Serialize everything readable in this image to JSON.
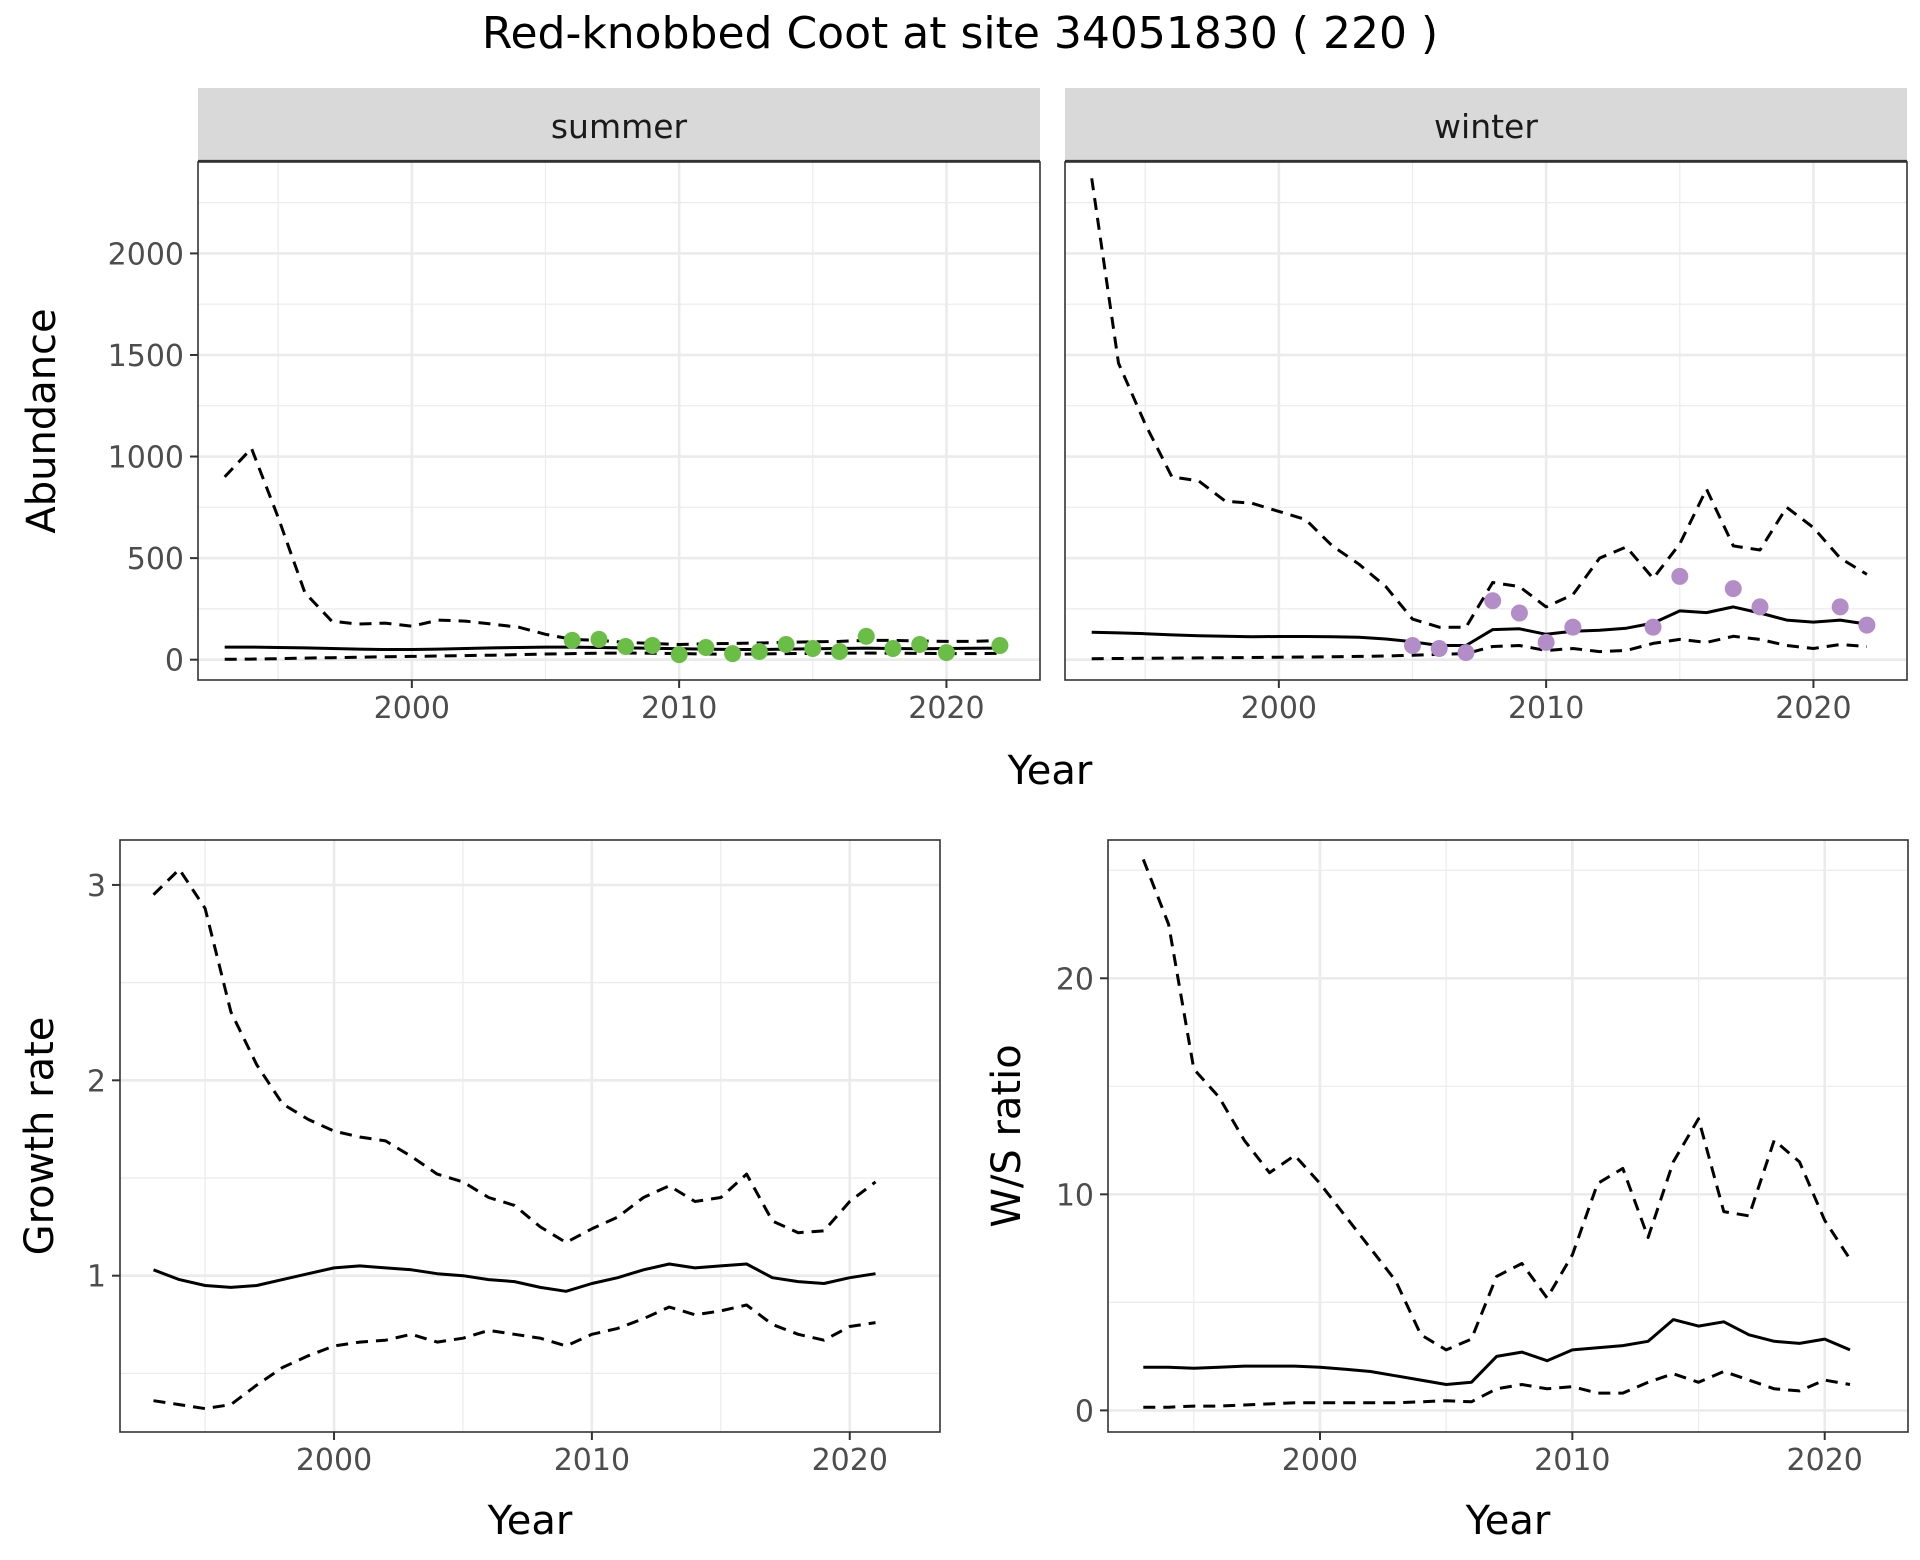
{
  "title": "Red-knobbed Coot at site 34051830 ( 220 )",
  "colors": {
    "summer_points": "#6ABE45",
    "winter_points": "#B28DC8",
    "lines": "#000000",
    "strip_bg": "#D9D9D9",
    "grid": "#EBEBEB"
  },
  "chart_data": [
    {
      "type": "line",
      "panel": "summer",
      "strip": "summer",
      "xlabel": "Year",
      "ylabel": "Abundance",
      "xlim": [
        1992,
        2023.5
      ],
      "ylim": [
        -100,
        2450
      ],
      "x_ticks": [
        2000,
        2010,
        2020
      ],
      "x_tick_labels": [
        "2000",
        "2010",
        "2020"
      ],
      "y_ticks": [
        0,
        500,
        1000,
        1500,
        2000
      ],
      "y_tick_labels": [
        "0",
        "500",
        "1000",
        "1500",
        "2000"
      ],
      "grid": true,
      "series": [
        {
          "style": "solid",
          "x": [
            1993,
            1994,
            1995,
            1996,
            1997,
            1998,
            1999,
            2000,
            2001,
            2002,
            2003,
            2004,
            2005,
            2006,
            2007,
            2008,
            2009,
            2010,
            2011,
            2012,
            2013,
            2014,
            2015,
            2016,
            2017,
            2018,
            2019,
            2020,
            2021,
            2022
          ],
          "y": [
            62,
            62,
            60,
            58,
            55,
            52,
            50,
            50,
            52,
            55,
            58,
            60,
            62,
            62,
            60,
            58,
            56,
            54,
            52,
            50,
            50,
            52,
            54,
            55,
            57,
            55,
            54,
            55,
            56,
            57
          ]
        },
        {
          "style": "dashed",
          "x": [
            1993,
            1994,
            1995,
            1996,
            1997,
            1998,
            1999,
            2000,
            2001,
            2002,
            2003,
            2004,
            2005,
            2006,
            2007,
            2008,
            2009,
            2010,
            2011,
            2012,
            2013,
            2014,
            2015,
            2016,
            2017,
            2018,
            2019,
            2020,
            2021,
            2022
          ],
          "y": [
            900,
            1040,
            700,
            330,
            190,
            175,
            180,
            165,
            195,
            190,
            175,
            160,
            125,
            100,
            95,
            85,
            80,
            75,
            78,
            80,
            82,
            85,
            88,
            90,
            95,
            95,
            92,
            90,
            90,
            95
          ]
        },
        {
          "style": "dashed",
          "x": [
            1993,
            1994,
            1995,
            1996,
            1997,
            1998,
            1999,
            2000,
            2001,
            2002,
            2003,
            2004,
            2005,
            2006,
            2007,
            2008,
            2009,
            2010,
            2011,
            2012,
            2013,
            2014,
            2015,
            2016,
            2017,
            2018,
            2019,
            2020,
            2021,
            2022
          ],
          "y": [
            2,
            3,
            5,
            8,
            10,
            12,
            14,
            16,
            18,
            20,
            22,
            25,
            28,
            30,
            32,
            33,
            32,
            30,
            28,
            27,
            28,
            30,
            31,
            32,
            33,
            32,
            31,
            30,
            30,
            31
          ]
        },
        {
          "style": "points",
          "x": [
            2006,
            2007,
            2008,
            2009,
            2010,
            2011,
            2012,
            2013,
            2014,
            2015,
            2016,
            2017,
            2018,
            2019,
            2020,
            2022
          ],
          "y": [
            95,
            100,
            65,
            70,
            25,
            60,
            30,
            40,
            75,
            55,
            40,
            115,
            55,
            75,
            35,
            70
          ]
        }
      ]
    },
    {
      "type": "line",
      "panel": "winter",
      "strip": "winter",
      "xlabel": "Year",
      "ylabel": "",
      "xlim": [
        1992,
        2023.5
      ],
      "ylim": [
        -100,
        2450
      ],
      "x_ticks": [
        2000,
        2010,
        2020
      ],
      "x_tick_labels": [
        "2000",
        "2010",
        "2020"
      ],
      "grid": true,
      "series": [
        {
          "style": "solid",
          "x": [
            1993,
            1994,
            1995,
            1996,
            1997,
            1998,
            1999,
            2000,
            2001,
            2002,
            2003,
            2004,
            2005,
            2006,
            2007,
            2008,
            2009,
            2010,
            2011,
            2012,
            2013,
            2014,
            2015,
            2016,
            2017,
            2018,
            2019,
            2020,
            2021,
            2022
          ],
          "y": [
            135,
            132,
            128,
            122,
            118,
            115,
            113,
            114,
            114,
            113,
            110,
            102,
            88,
            70,
            70,
            148,
            152,
            125,
            140,
            145,
            155,
            180,
            240,
            232,
            260,
            230,
            195,
            185,
            195,
            175
          ]
        },
        {
          "style": "dashed",
          "x": [
            1993,
            1994,
            1995,
            1996,
            1997,
            1998,
            1999,
            2000,
            2001,
            2002,
            2003,
            2004,
            2005,
            2006,
            2007,
            2008,
            2009,
            2010,
            2011,
            2012,
            2013,
            2014,
            2015,
            2016,
            2017,
            2018,
            2019,
            2020,
            2021,
            2022
          ],
          "y": [
            2370,
            1460,
            1160,
            900,
            880,
            780,
            770,
            730,
            690,
            560,
            470,
            360,
            200,
            160,
            160,
            380,
            360,
            260,
            320,
            500,
            555,
            400,
            570,
            840,
            560,
            540,
            750,
            650,
            500,
            420
          ]
        },
        {
          "style": "dashed",
          "x": [
            1993,
            1994,
            1995,
            1996,
            1997,
            1998,
            1999,
            2000,
            2001,
            2002,
            2003,
            2004,
            2005,
            2006,
            2007,
            2008,
            2009,
            2010,
            2011,
            2012,
            2013,
            2014,
            2015,
            2016,
            2017,
            2018,
            2019,
            2020,
            2021,
            2022
          ],
          "y": [
            5,
            6,
            7,
            8,
            9,
            10,
            11,
            12,
            13,
            14,
            16,
            18,
            22,
            26,
            30,
            65,
            70,
            45,
            55,
            40,
            45,
            80,
            100,
            85,
            115,
            100,
            70,
            55,
            75,
            65
          ]
        },
        {
          "style": "points",
          "x": [
            2005,
            2006,
            2007,
            2008,
            2009,
            2010,
            2011,
            2014,
            2015,
            2017,
            2018,
            2021,
            2022
          ],
          "y": [
            70,
            55,
            35,
            290,
            230,
            85,
            160,
            160,
            410,
            350,
            260,
            260,
            170
          ]
        }
      ]
    },
    {
      "type": "line",
      "panel": "growth",
      "xlabel": "Year",
      "ylabel": "Growth rate",
      "xlim": [
        1991.7,
        2023.5
      ],
      "ylim": [
        0.2,
        3.23
      ],
      "x_ticks": [
        2000,
        2010,
        2020
      ],
      "x_tick_labels": [
        "2000",
        "2010",
        "2020"
      ],
      "y_ticks": [
        1,
        2,
        3
      ],
      "y_tick_labels": [
        "1",
        "2",
        "3"
      ],
      "grid": true,
      "series": [
        {
          "style": "solid",
          "x": [
            1993,
            1994,
            1995,
            1996,
            1997,
            1998,
            1999,
            2000,
            2001,
            2002,
            2003,
            2004,
            2005,
            2006,
            2007,
            2008,
            2009,
            2010,
            2011,
            2012,
            2013,
            2014,
            2015,
            2016,
            2017,
            2018,
            2019,
            2020,
            2021
          ],
          "y": [
            1.03,
            0.98,
            0.95,
            0.94,
            0.95,
            0.98,
            1.01,
            1.04,
            1.05,
            1.04,
            1.03,
            1.01,
            1.0,
            0.98,
            0.97,
            0.94,
            0.92,
            0.96,
            0.99,
            1.03,
            1.06,
            1.04,
            1.05,
            1.06,
            0.99,
            0.97,
            0.96,
            0.99,
            1.01
          ]
        },
        {
          "style": "dashed",
          "x": [
            1993,
            1994,
            1995,
            1996,
            1997,
            1998,
            1999,
            2000,
            2001,
            2002,
            2003,
            2004,
            2005,
            2006,
            2007,
            2008,
            2009,
            2010,
            2011,
            2012,
            2013,
            2014,
            2015,
            2016,
            2017,
            2018,
            2019,
            2020,
            2021
          ],
          "y": [
            2.95,
            3.08,
            2.88,
            2.35,
            2.08,
            1.88,
            1.8,
            1.74,
            1.71,
            1.69,
            1.61,
            1.52,
            1.48,
            1.4,
            1.36,
            1.25,
            1.17,
            1.24,
            1.3,
            1.4,
            1.46,
            1.38,
            1.4,
            1.52,
            1.28,
            1.22,
            1.23,
            1.38,
            1.48
          ]
        },
        {
          "style": "dashed",
          "x": [
            1993,
            1994,
            1995,
            1996,
            1997,
            1998,
            1999,
            2000,
            2001,
            2002,
            2003,
            2004,
            2005,
            2006,
            2007,
            2008,
            2009,
            2010,
            2011,
            2012,
            2013,
            2014,
            2015,
            2016,
            2017,
            2018,
            2019,
            2020,
            2021
          ],
          "y": [
            0.36,
            0.34,
            0.32,
            0.34,
            0.44,
            0.53,
            0.59,
            0.64,
            0.66,
            0.67,
            0.7,
            0.66,
            0.68,
            0.72,
            0.7,
            0.68,
            0.64,
            0.7,
            0.73,
            0.78,
            0.84,
            0.8,
            0.82,
            0.85,
            0.75,
            0.7,
            0.67,
            0.74,
            0.76
          ]
        }
      ]
    },
    {
      "type": "line",
      "panel": "ratio",
      "xlabel": "Year",
      "ylabel": "W/S ratio",
      "xlim": [
        1991.6,
        2023.3
      ],
      "ylim": [
        -1,
        26.4
      ],
      "x_ticks": [
        2000,
        2010,
        2020
      ],
      "x_tick_labels": [
        "2000",
        "2010",
        "2020"
      ],
      "y_ticks": [
        0,
        10,
        20
      ],
      "y_tick_labels": [
        "0",
        "10",
        "20"
      ],
      "grid": true,
      "series": [
        {
          "style": "solid",
          "x": [
            1993,
            1994,
            1995,
            1996,
            1997,
            1998,
            1999,
            2000,
            2001,
            2002,
            2003,
            2004,
            2005,
            2006,
            2007,
            2008,
            2009,
            2010,
            2011,
            2012,
            2013,
            2014,
            2015,
            2016,
            2017,
            2018,
            2019,
            2020,
            2021
          ],
          "y": [
            2.0,
            2.0,
            1.95,
            2.0,
            2.05,
            2.05,
            2.05,
            2.0,
            1.9,
            1.8,
            1.6,
            1.4,
            1.2,
            1.3,
            2.5,
            2.7,
            2.3,
            2.8,
            2.9,
            3.0,
            3.2,
            4.2,
            3.9,
            4.1,
            3.5,
            3.2,
            3.1,
            3.3,
            2.8
          ]
        },
        {
          "style": "dashed",
          "x": [
            1993,
            1994,
            1995,
            1996,
            1997,
            1998,
            1999,
            2000,
            2001,
            2002,
            2003,
            2004,
            2005,
            2006,
            2007,
            2008,
            2009,
            2010,
            2011,
            2012,
            2013,
            2014,
            2015,
            2016,
            2017,
            2018,
            2019,
            2020,
            2021
          ],
          "y": [
            25.5,
            22.5,
            15.8,
            14.5,
            12.5,
            11.0,
            11.8,
            10.5,
            9.0,
            7.5,
            6.0,
            3.5,
            2.8,
            3.3,
            6.2,
            6.8,
            5.2,
            7.2,
            10.5,
            11.2,
            8.0,
            11.5,
            13.5,
            9.2,
            9.0,
            12.5,
            11.5,
            8.8,
            7.0
          ]
        },
        {
          "style": "dashed",
          "x": [
            1993,
            1994,
            1995,
            1996,
            1997,
            1998,
            1999,
            2000,
            2001,
            2002,
            2003,
            2004,
            2005,
            2006,
            2007,
            2008,
            2009,
            2010,
            2011,
            2012,
            2013,
            2014,
            2015,
            2016,
            2017,
            2018,
            2019,
            2020,
            2021
          ],
          "y": [
            0.15,
            0.15,
            0.2,
            0.2,
            0.25,
            0.3,
            0.35,
            0.35,
            0.35,
            0.35,
            0.35,
            0.4,
            0.45,
            0.4,
            1.0,
            1.2,
            1.0,
            1.1,
            0.8,
            0.8,
            1.3,
            1.7,
            1.3,
            1.8,
            1.4,
            1.0,
            0.9,
            1.4,
            1.2
          ]
        }
      ]
    }
  ]
}
